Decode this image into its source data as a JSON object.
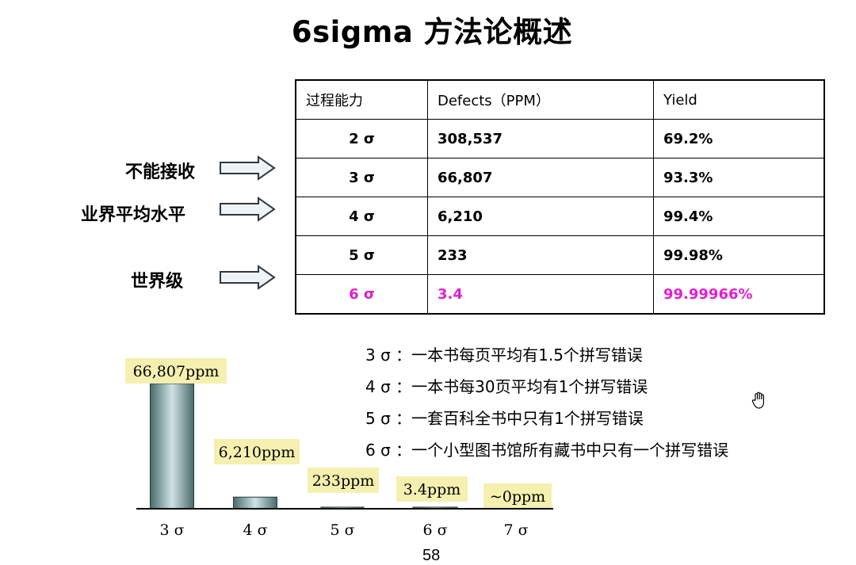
{
  "title": "6sigma 方法论概述",
  "table": {
    "headers": [
      "过程能力",
      "Defects（PPM）",
      "Yield"
    ],
    "rows": [
      {
        "sigma": "2 σ",
        "defects": "308,537",
        "yield": "69.2%"
      },
      {
        "sigma": "3 σ",
        "defects": "66,807",
        "yield": "93.3%"
      },
      {
        "sigma": "4 σ",
        "defects": "6,210",
        "yield": "99.4%"
      },
      {
        "sigma": "5 σ",
        "defects": "233",
        "yield": "99.98%"
      },
      {
        "sigma": "6 σ",
        "defects": "3.4",
        "yield": "99.99966%"
      }
    ],
    "highlight_color": "#e020d0"
  },
  "side_labels": [
    "不能接收",
    "业界平均水平",
    "世界级"
  ],
  "notes": [
    "3 σ ：一本书每页平均有1.5个拼写错误",
    "4 σ ：一本书每30页平均有1个拼写错误",
    "5 σ ：一套百科全书中只有1个拼写错误",
    "6 σ ：一个小型图书馆所有藏书中只有一个拼写错误"
  ],
  "chart_data": {
    "type": "bar",
    "categories": [
      "3 σ",
      "4 σ",
      "5 σ",
      "6 σ",
      "7 σ"
    ],
    "values": [
      66807,
      6210,
      233,
      3.4,
      0
    ],
    "data_labels": [
      "66,807ppm",
      "6,210ppm",
      "233ppm",
      "3.4ppm",
      "~0ppm"
    ],
    "label_bg": "#f5f0b0",
    "bar_color": "#6a8a8c"
  },
  "page_number": "58"
}
